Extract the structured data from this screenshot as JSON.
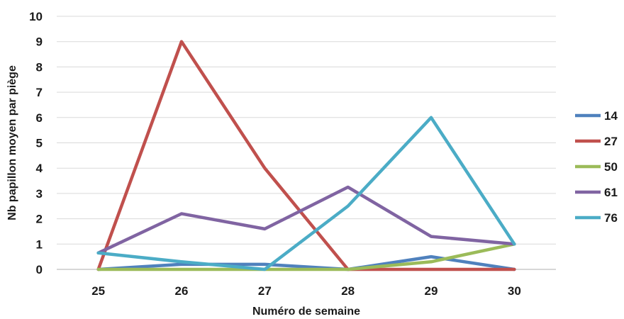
{
  "chart_data": {
    "type": "line",
    "title": "",
    "xlabel": "Numéro de semaine",
    "ylabel": "Nb papillon moyen par piège",
    "categories": [
      "25",
      "26",
      "27",
      "28",
      "29",
      "30"
    ],
    "y_ticks": [
      "0",
      "1",
      "2",
      "3",
      "4",
      "5",
      "6",
      "7",
      "8",
      "9",
      "10"
    ],
    "ylim": [
      0,
      10
    ],
    "grid": true,
    "legend_position": "right",
    "series": [
      {
        "name": "14",
        "color": "#4f81bd",
        "values": [
          0,
          0.2,
          0.2,
          0,
          0.5,
          0
        ]
      },
      {
        "name": "27",
        "color": "#c0504d",
        "values": [
          0,
          9,
          4,
          0,
          0,
          0
        ]
      },
      {
        "name": "50",
        "color": "#9bbb59",
        "values": [
          0,
          0,
          0,
          0,
          0.3,
          1
        ]
      },
      {
        "name": "61",
        "color": "#8064a2",
        "values": [
          0.65,
          2.2,
          1.6,
          3.25,
          1.3,
          1
        ]
      },
      {
        "name": "76",
        "color": "#4bacc6",
        "values": [
          0.65,
          0.3,
          0,
          2.5,
          6,
          1
        ]
      }
    ]
  }
}
